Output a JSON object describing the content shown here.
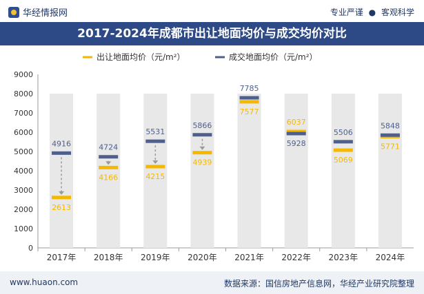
{
  "header": {
    "brand": "华经情报网",
    "tagline_left": "专业严谨",
    "tagline_sep": "●",
    "tagline_right": "客观科学"
  },
  "footer": {
    "site": "www.huaon.com",
    "source": "数据来源：国信房地产信息网，华经产业研究院整理"
  },
  "colors": {
    "title_bg": "#2e4a86",
    "supply": "#f5b800",
    "deal": "#4e5f8d",
    "column": "#e8e8e8"
  },
  "chart_data": {
    "type": "line",
    "title": "2017-2024年成都市出让地面均价与成交均价对比",
    "categories": [
      "2017年",
      "2018年",
      "2019年",
      "2020年",
      "2021年",
      "2022年",
      "2023年",
      "2024年"
    ],
    "series": [
      {
        "name": "出让地面均价（元/m²）",
        "values": [
          2613,
          4166,
          4215,
          4939,
          7577,
          6037,
          5069,
          5771
        ]
      },
      {
        "name": "成交地面均价（元/m²）",
        "values": [
          4916,
          4724,
          5531,
          5866,
          7785,
          5928,
          5506,
          5848
        ]
      }
    ],
    "ylim": [
      0,
      9000
    ],
    "yticks": [
      0,
      1000,
      2000,
      3000,
      4000,
      5000,
      6000,
      7000,
      8000,
      9000
    ],
    "xlabel": "",
    "ylabel": "",
    "legend": "top"
  }
}
